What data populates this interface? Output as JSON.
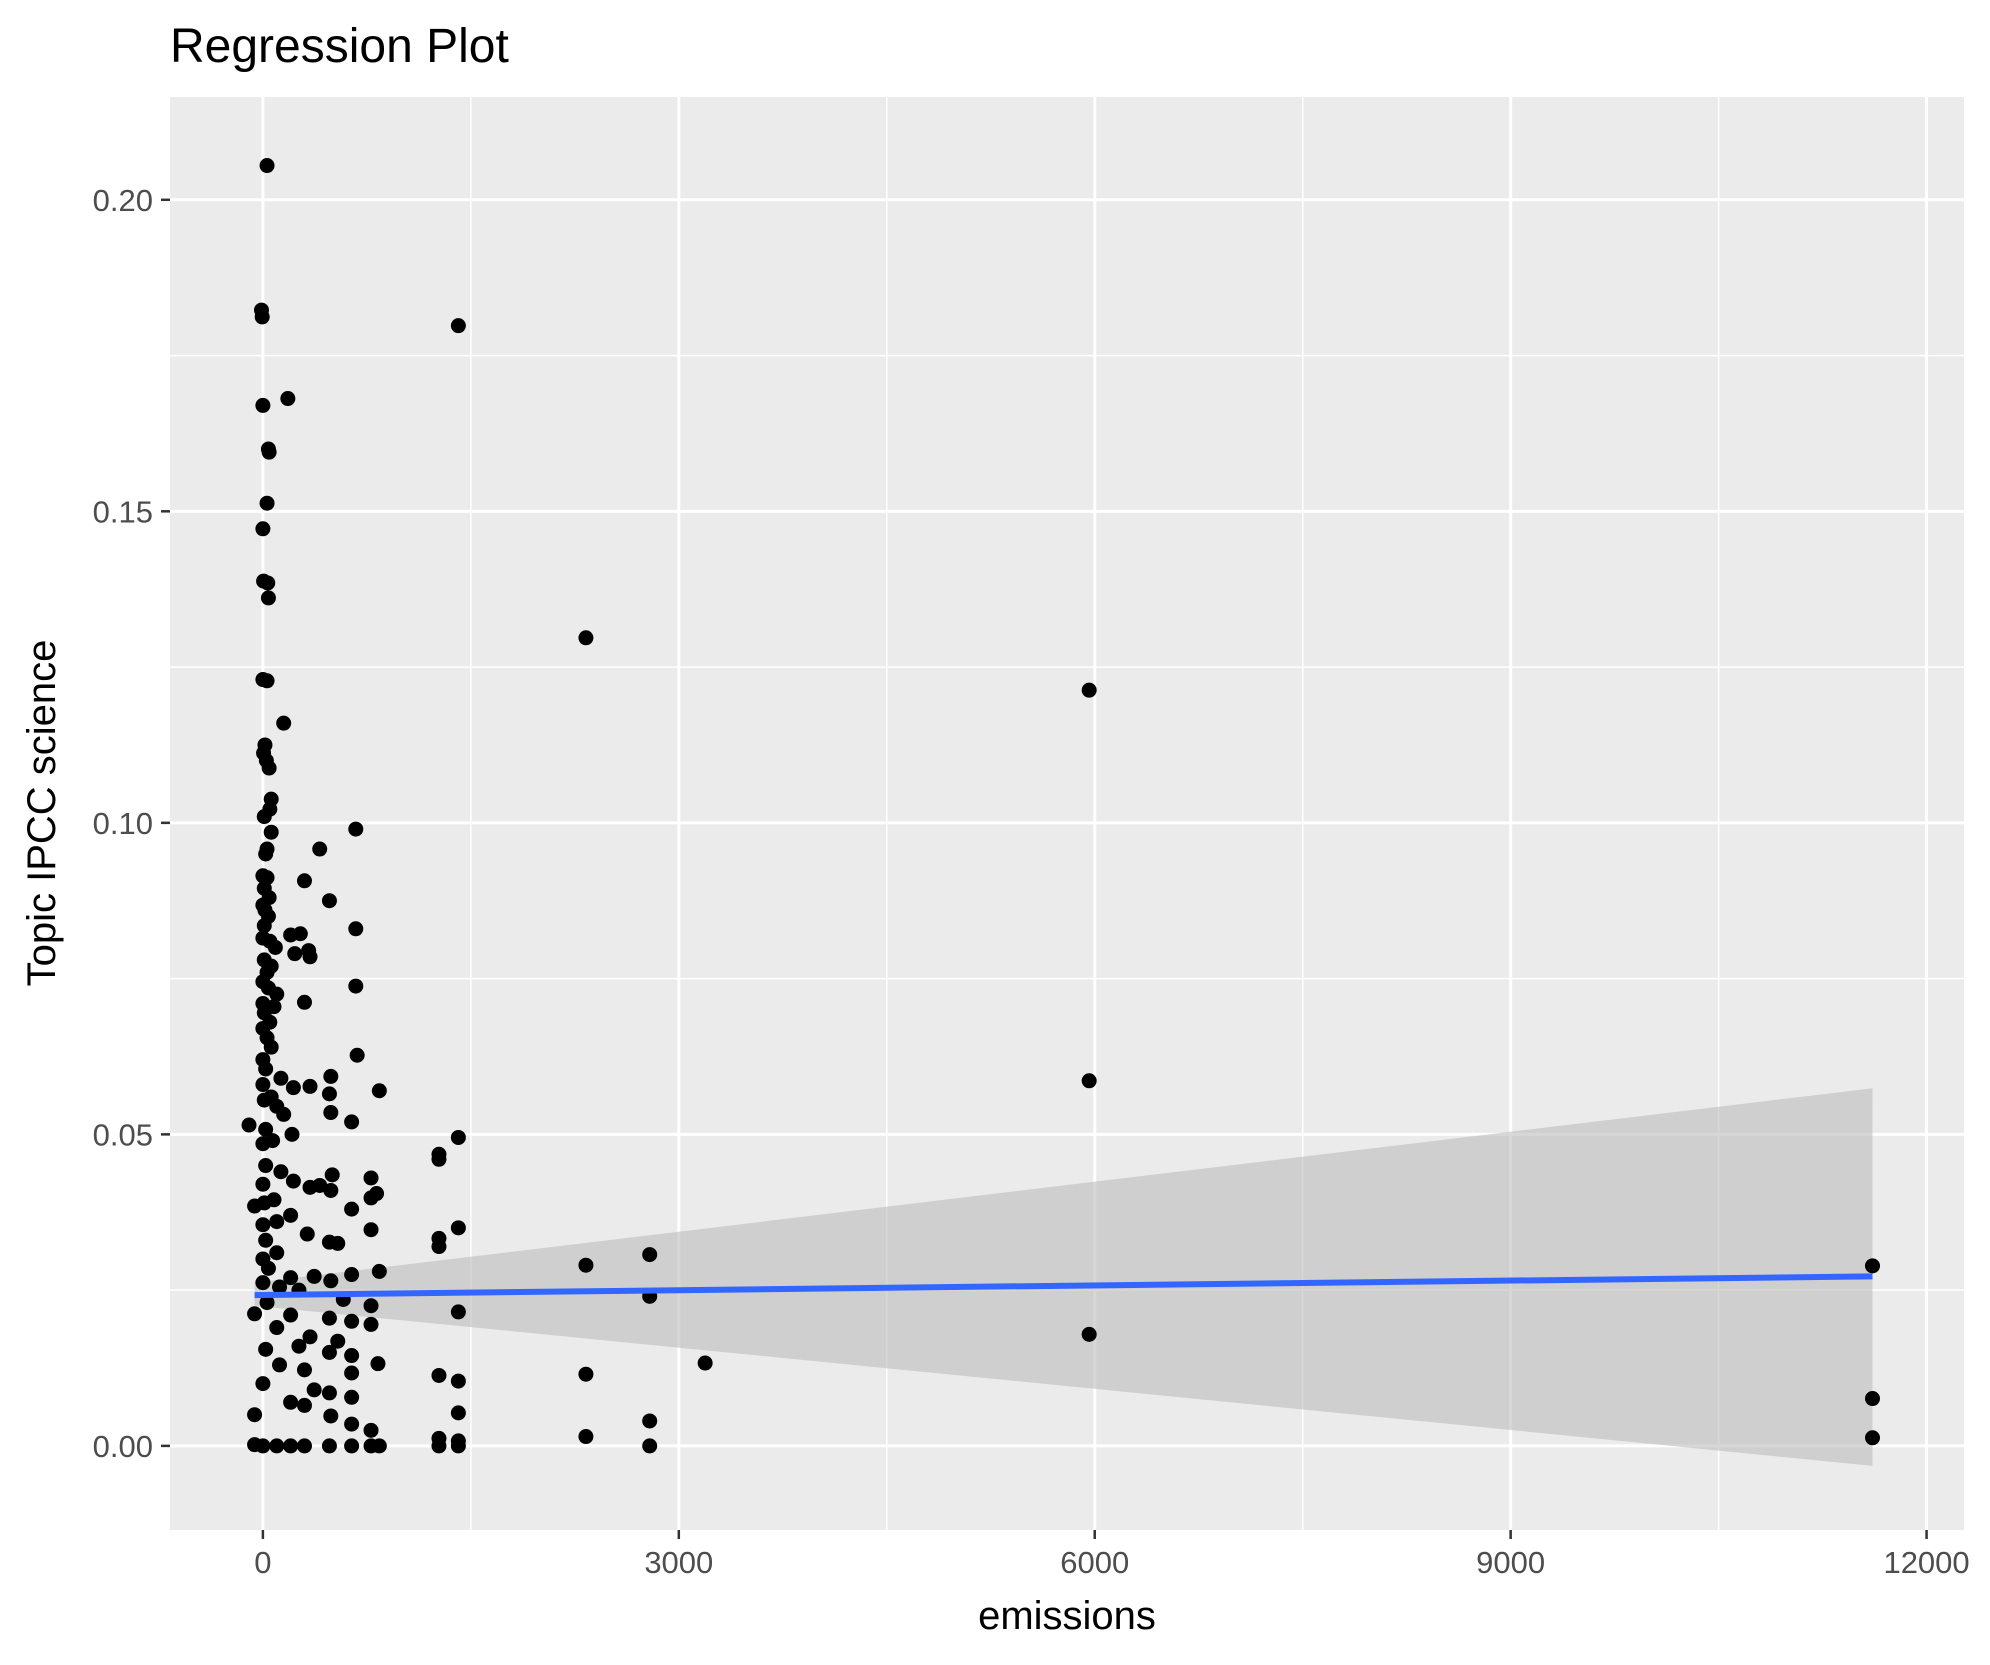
{
  "chart_data": {
    "type": "scatter",
    "title": "Regression Plot",
    "xlabel": "emissions",
    "ylabel": "Topic IPCC science",
    "xlim": [
      -670,
      12270
    ],
    "ylim": [
      -0.0135,
      0.2165
    ],
    "x_ticks": [
      0,
      3000,
      6000,
      9000,
      12000
    ],
    "x_tick_labels": [
      "0",
      "3000",
      "6000",
      "9000",
      "12000"
    ],
    "y_ticks": [
      0.0,
      0.05,
      0.1,
      0.15,
      0.2
    ],
    "y_tick_labels": [
      "0.00",
      "0.05",
      "0.10",
      "0.15",
      "0.20"
    ],
    "grid": true,
    "theme": "gray panel with white gridlines",
    "colors": {
      "panel": "#ebebeb",
      "grid": "#ffffff",
      "points": "#000000",
      "regression_line": "#3366ff",
      "confidence_band": "#bdbdbd"
    },
    "regression": {
      "x": [
        -60,
        11610
      ],
      "y": [
        0.0242,
        0.0272
      ],
      "ci_lower": [
        0.0225,
        -0.0032
      ],
      "ci_upper": [
        0.0262,
        0.0574
      ]
    },
    "series": [
      {
        "values": [
          [
            30,
            0.2055
          ],
          [
            -10,
            0.1823
          ],
          [
            -5,
            0.1812
          ],
          [
            1410,
            0.1798
          ],
          [
            180,
            0.1681
          ],
          [
            0,
            0.167
          ],
          [
            40,
            0.16
          ],
          [
            45,
            0.1595
          ],
          [
            30,
            0.1513
          ],
          [
            0,
            0.1472
          ],
          [
            5,
            0.1388
          ],
          [
            35,
            0.1385
          ],
          [
            40,
            0.1361
          ],
          [
            2330,
            0.1297
          ],
          [
            0,
            0.123
          ],
          [
            30,
            0.1228
          ],
          [
            5960,
            0.1213
          ],
          [
            150,
            0.116
          ],
          [
            15,
            0.1125
          ],
          [
            5,
            0.1112
          ],
          [
            25,
            0.11
          ],
          [
            45,
            0.1088
          ],
          [
            60,
            0.1038
          ],
          [
            50,
            0.1022
          ],
          [
            10,
            0.101
          ],
          [
            670,
            0.099
          ],
          [
            60,
            0.0985
          ],
          [
            410,
            0.0958
          ],
          [
            30,
            0.0958
          ],
          [
            20,
            0.095
          ],
          [
            0,
            0.0915
          ],
          [
            30,
            0.0912
          ],
          [
            300,
            0.0907
          ],
          [
            10,
            0.0895
          ],
          [
            45,
            0.088
          ],
          [
            480,
            0.0875
          ],
          [
            0,
            0.0868
          ],
          [
            15,
            0.086
          ],
          [
            40,
            0.085
          ],
          [
            10,
            0.0835
          ],
          [
            670,
            0.083
          ],
          [
            270,
            0.0822
          ],
          [
            200,
            0.082
          ],
          [
            0,
            0.0815
          ],
          [
            50,
            0.081
          ],
          [
            90,
            0.08
          ],
          [
            330,
            0.0795
          ],
          [
            230,
            0.079
          ],
          [
            340,
            0.0785
          ],
          [
            10,
            0.078
          ],
          [
            60,
            0.077
          ],
          [
            30,
            0.076
          ],
          [
            0,
            0.0745
          ],
          [
            670,
            0.0738
          ],
          [
            40,
            0.0735
          ],
          [
            100,
            0.0725
          ],
          [
            300,
            0.0712
          ],
          [
            0,
            0.071
          ],
          [
            80,
            0.0705
          ],
          [
            10,
            0.0695
          ],
          [
            50,
            0.068
          ],
          [
            0,
            0.067
          ],
          [
            30,
            0.0655
          ],
          [
            60,
            0.064
          ],
          [
            680,
            0.0627
          ],
          [
            0,
            0.062
          ],
          [
            20,
            0.0605
          ],
          [
            490,
            0.0593
          ],
          [
            5960,
            0.0586
          ],
          [
            130,
            0.059
          ],
          [
            0,
            0.058
          ],
          [
            340,
            0.0577
          ],
          [
            220,
            0.0575
          ],
          [
            840,
            0.057
          ],
          [
            480,
            0.0565
          ],
          [
            60,
            0.056
          ],
          [
            10,
            0.0555
          ],
          [
            100,
            0.0545
          ],
          [
            490,
            0.0535
          ],
          [
            150,
            0.0532
          ],
          [
            640,
            0.052
          ],
          [
            -100,
            0.0515
          ],
          [
            20,
            0.0508
          ],
          [
            210,
            0.05
          ],
          [
            1410,
            0.0495
          ],
          [
            70,
            0.049
          ],
          [
            0,
            0.0485
          ],
          [
            1270,
            0.0468
          ],
          [
            1270,
            0.046
          ],
          [
            20,
            0.045
          ],
          [
            130,
            0.044
          ],
          [
            500,
            0.0435
          ],
          [
            780,
            0.043
          ],
          [
            220,
            0.0425
          ],
          [
            0,
            0.042
          ],
          [
            410,
            0.0418
          ],
          [
            340,
            0.0415
          ],
          [
            490,
            0.041
          ],
          [
            820,
            0.0405
          ],
          [
            780,
            0.0398
          ],
          [
            80,
            0.0395
          ],
          [
            10,
            0.039
          ],
          [
            -60,
            0.0385
          ],
          [
            640,
            0.038
          ],
          [
            200,
            0.037
          ],
          [
            100,
            0.036
          ],
          [
            0,
            0.0355
          ],
          [
            1410,
            0.035
          ],
          [
            780,
            0.0347
          ],
          [
            320,
            0.034
          ],
          [
            1270,
            0.0333
          ],
          [
            20,
            0.033
          ],
          [
            480,
            0.0327
          ],
          [
            540,
            0.0325
          ],
          [
            1270,
            0.032
          ],
          [
            100,
            0.031
          ],
          [
            2790,
            0.0307
          ],
          [
            0,
            0.03
          ],
          [
            2330,
            0.029
          ],
          [
            11610,
            0.0289
          ],
          [
            40,
            0.0285
          ],
          [
            840,
            0.028
          ],
          [
            640,
            0.0275
          ],
          [
            370,
            0.0272
          ],
          [
            200,
            0.027
          ],
          [
            490,
            0.0265
          ],
          [
            0,
            0.0262
          ],
          [
            120,
            0.0255
          ],
          [
            260,
            0.025
          ],
          [
            2790,
            0.024
          ],
          [
            580,
            0.0235
          ],
          [
            30,
            0.023
          ],
          [
            780,
            0.0225
          ],
          [
            1410,
            0.0215
          ],
          [
            -60,
            0.0212
          ],
          [
            200,
            0.021
          ],
          [
            480,
            0.0205
          ],
          [
            640,
            0.02
          ],
          [
            780,
            0.0195
          ],
          [
            100,
            0.019
          ],
          [
            5960,
            0.0179
          ],
          [
            340,
            0.0175
          ],
          [
            540,
            0.0168
          ],
          [
            260,
            0.016
          ],
          [
            20,
            0.0155
          ],
          [
            480,
            0.015
          ],
          [
            640,
            0.0145
          ],
          [
            3190,
            0.0133
          ],
          [
            120,
            0.013
          ],
          [
            830,
            0.0132
          ],
          [
            300,
            0.0122
          ],
          [
            640,
            0.0117
          ],
          [
            2330,
            0.0115
          ],
          [
            1270,
            0.0113
          ],
          [
            1410,
            0.0104
          ],
          [
            0,
            0.01
          ],
          [
            370,
            0.009
          ],
          [
            480,
            0.0085
          ],
          [
            640,
            0.0078
          ],
          [
            11610,
            0.0076
          ],
          [
            200,
            0.007
          ],
          [
            300,
            0.0065
          ],
          [
            1410,
            0.0053
          ],
          [
            490,
            0.0048
          ],
          [
            -60,
            0.005
          ],
          [
            640,
            0.0035
          ],
          [
            2790,
            0.004
          ],
          [
            780,
            0.0025
          ],
          [
            2330,
            0.0015
          ],
          [
            11610,
            0.0013
          ],
          [
            1270,
            0.0012
          ],
          [
            1410,
            0.0008
          ],
          [
            -60,
            0.0002
          ],
          [
            0,
            0.0
          ],
          [
            100,
            0.0
          ],
          [
            200,
            0.0
          ],
          [
            300,
            0.0
          ],
          [
            480,
            0.0
          ],
          [
            640,
            0.0
          ],
          [
            780,
            0.0
          ],
          [
            840,
            0.0
          ],
          [
            1270,
            0.0
          ],
          [
            1410,
            0.0
          ],
          [
            2790,
            0.0
          ]
        ]
      }
    ]
  }
}
